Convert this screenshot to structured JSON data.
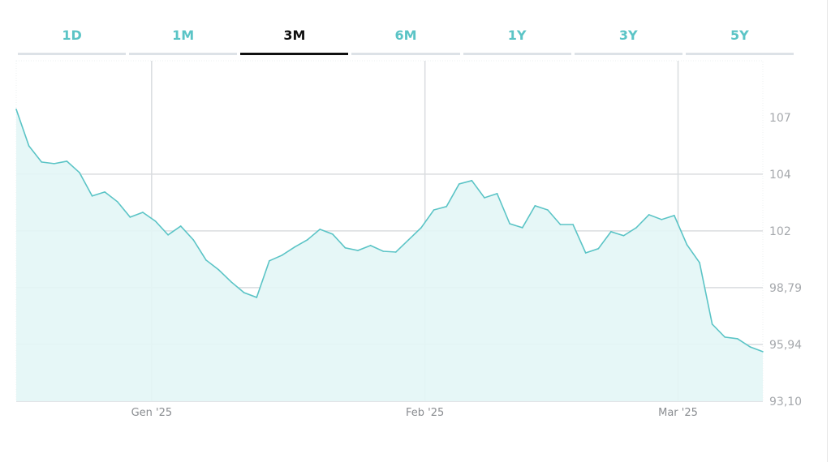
{
  "tabs": [
    {
      "label": "1D",
      "active": false
    },
    {
      "label": "1M",
      "active": false
    },
    {
      "label": "3M",
      "active": true
    },
    {
      "label": "6M",
      "active": false
    },
    {
      "label": "1Y",
      "active": false
    },
    {
      "label": "3Y",
      "active": false
    },
    {
      "label": "5Y",
      "active": false
    }
  ],
  "chart_data": {
    "type": "area",
    "title": "",
    "xlabel": "",
    "ylabel": "",
    "line_color": "#5bc4c6",
    "fill_color": "#e3f6f6",
    "grid": true,
    "y_axis_side": "right",
    "ylim": [
      93.1,
      110.15
    ],
    "y_ticks": [
      {
        "label": "107",
        "value": 107.31
      },
      {
        "label": "104",
        "value": 104.47
      },
      {
        "label": "102",
        "value": 101.63
      },
      {
        "label": "98,79",
        "value": 98.79
      },
      {
        "label": "95,94",
        "value": 95.94
      },
      {
        "label": "93,10",
        "value": 93.1
      }
    ],
    "x_ticks": [
      {
        "label": "Gen '25",
        "index": 10.7
      },
      {
        "label": "Feb '25",
        "index": 32.3
      },
      {
        "label": "Mar '25",
        "index": 52.3
      }
    ],
    "values": [
      107.72,
      105.89,
      105.08,
      105.0,
      105.12,
      104.55,
      103.38,
      103.58,
      103.09,
      102.32,
      102.56,
      102.12,
      101.43,
      101.87,
      101.18,
      100.17,
      99.68,
      99.07,
      98.54,
      98.3,
      100.13,
      100.41,
      100.82,
      101.18,
      101.71,
      101.47,
      100.78,
      100.65,
      100.9,
      100.61,
      100.57,
      101.18,
      101.79,
      102.68,
      102.85,
      103.98,
      104.15,
      103.29,
      103.5,
      101.99,
      101.79,
      102.89,
      102.68,
      101.95,
      101.95,
      100.53,
      100.74,
      101.59,
      101.39,
      101.79,
      102.44,
      102.2,
      102.4,
      100.94,
      100.04,
      96.96,
      96.31,
      96.23,
      95.82,
      95.58
    ]
  }
}
